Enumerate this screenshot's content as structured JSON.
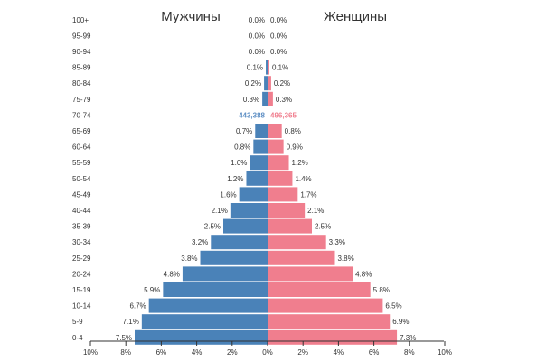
{
  "colors": {
    "male": "#4a82b8",
    "female": "#f07e8e",
    "male_count": "#5e8fc4",
    "female_count": "#f07e8e"
  },
  "chart_data": {
    "type": "bar",
    "orientation": "horizontal",
    "subtype": "population-pyramid",
    "male_title": "Мужчины",
    "female_title": "Женщины",
    "categories": [
      "100+",
      "95-99",
      "90-94",
      "85-89",
      "80-84",
      "75-79",
      "70-74",
      "65-69",
      "60-64",
      "55-59",
      "50-54",
      "45-49",
      "40-44",
      "35-39",
      "30-34",
      "25-29",
      "20-24",
      "15-19",
      "10-14",
      "5-9",
      "0-4"
    ],
    "series": [
      {
        "name": "Мужчины",
        "values": [
          0.0,
          0.0,
          0.0,
          0.1,
          0.2,
          0.3,
          null,
          0.7,
          0.8,
          1.0,
          1.2,
          1.6,
          2.1,
          2.5,
          3.2,
          3.8,
          4.8,
          5.9,
          6.7,
          7.1,
          7.5
        ],
        "labels": [
          "0.0%",
          "0.0%",
          "0.0%",
          "0.1%",
          "0.2%",
          "0.3%",
          "",
          "0.7%",
          "0.8%",
          "1.0%",
          "1.2%",
          "1.6%",
          "2.1%",
          "2.5%",
          "3.2%",
          "3.8%",
          "4.8%",
          "5.9%",
          "6.7%",
          "7.1%",
          "7.5%"
        ]
      },
      {
        "name": "Женщины",
        "values": [
          0.0,
          0.0,
          0.0,
          0.1,
          0.2,
          0.3,
          null,
          0.8,
          0.9,
          1.2,
          1.4,
          1.7,
          2.1,
          2.5,
          3.3,
          3.8,
          4.8,
          5.8,
          6.5,
          6.9,
          7.3
        ],
        "labels": [
          "0.0%",
          "0.0%",
          "0.0%",
          "0.1%",
          "0.2%",
          "0.3%",
          "",
          "0.8%",
          "0.9%",
          "1.2%",
          "1.4%",
          "1.7%",
          "2.1%",
          "2.5%",
          "3.3%",
          "3.8%",
          "4.8%",
          "5.8%",
          "6.5%",
          "6.9%",
          "7.3%"
        ]
      }
    ],
    "annotations": {
      "male_count": "443,388",
      "female_count": "496,365",
      "category": "70-74"
    },
    "xlim": [
      -10,
      10
    ],
    "xticks": [
      "10%",
      "8%",
      "6%",
      "4%",
      "2%",
      "0%",
      "2%",
      "4%",
      "6%",
      "8%",
      "10%"
    ],
    "grid": false,
    "legend": "none"
  }
}
